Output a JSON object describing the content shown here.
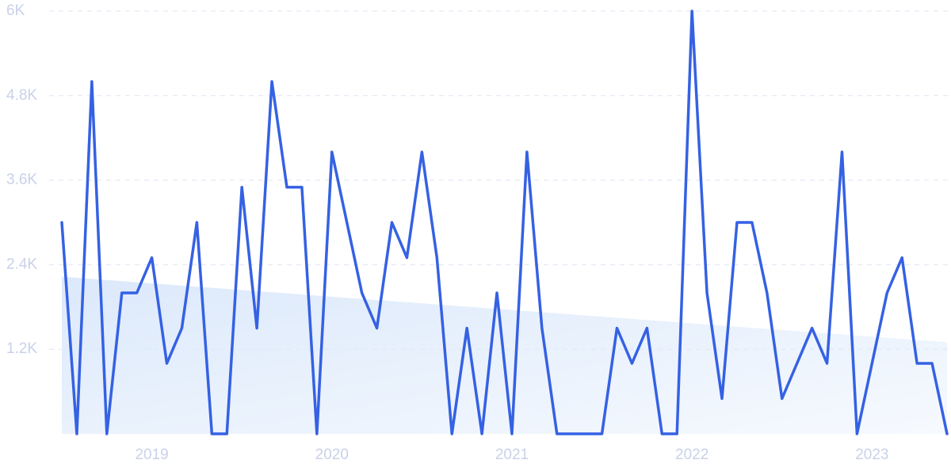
{
  "chart_data": {
    "type": "line",
    "categories": [
      null,
      null,
      null,
      null,
      null,
      null,
      "2019",
      null,
      null,
      null,
      null,
      null,
      null,
      null,
      null,
      null,
      null,
      null,
      "2020",
      null,
      null,
      null,
      null,
      null,
      null,
      null,
      null,
      null,
      null,
      null,
      "2021",
      null,
      null,
      null,
      null,
      null,
      null,
      null,
      null,
      null,
      null,
      null,
      "2022",
      null,
      null,
      null,
      null,
      null,
      null,
      null,
      null,
      null,
      null,
      null,
      "2023",
      null,
      null,
      null,
      null,
      null
    ],
    "values": [
      3000,
      0,
      5000,
      0,
      2000,
      2000,
      2500,
      1000,
      1500,
      3000,
      0,
      0,
      3500,
      1500,
      5000,
      3500,
      3500,
      0,
      4000,
      3000,
      2000,
      1500,
      3000,
      2500,
      4000,
      2500,
      0,
      1500,
      0,
      2000,
      0,
      4000,
      1500,
      0,
      0,
      0,
      0,
      1500,
      1000,
      1500,
      0,
      0,
      6000,
      2000,
      500,
      3000,
      3000,
      2000,
      500,
      1000,
      1500,
      1000,
      4000,
      0,
      1000,
      2000,
      2500,
      1000,
      1000,
      0
    ],
    "color": "#3561e3",
    "trend": [
      2230,
      1300
    ],
    "trend_color": "#dce9fb",
    "ylim": [
      0,
      6000
    ],
    "yticks": [
      {
        "value": 1200,
        "label": "1.2K"
      },
      {
        "value": 2400,
        "label": "2.4K"
      },
      {
        "value": 3600,
        "label": "3.6K"
      },
      {
        "value": 4800,
        "label": "4.8K"
      },
      {
        "value": 6000,
        "label": "6K"
      }
    ],
    "grid": true
  }
}
